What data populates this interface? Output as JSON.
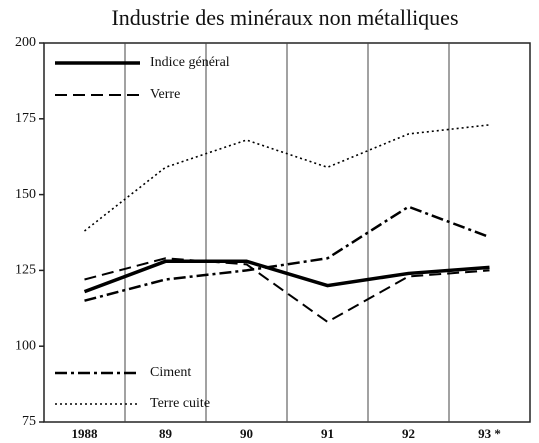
{
  "chart_data": {
    "type": "line",
    "title": "Industrie des minéraux non métalliques",
    "categories": [
      "1988",
      "89",
      "90",
      "91",
      "92",
      "93 *"
    ],
    "series": [
      {
        "name": "Indice général",
        "color": "#000000",
        "dash": "solid",
        "values": [
          118,
          128,
          128,
          120,
          124,
          126
        ]
      },
      {
        "name": "Verre",
        "color": "#000000",
        "dash": "dashed",
        "values": [
          122,
          129,
          127,
          108,
          123,
          125
        ]
      },
      {
        "name": "Ciment",
        "color": "#000000",
        "dash": "dashdot",
        "values": [
          115,
          122,
          125,
          129,
          146,
          136
        ]
      },
      {
        "name": "Terre cuite",
        "color": "#000000",
        "dash": "dotted",
        "values": [
          138,
          159,
          168,
          159,
          170,
          173
        ]
      }
    ],
    "ylim": [
      75,
      200
    ],
    "yticks": [
      75,
      100,
      125,
      150,
      175,
      200
    ]
  }
}
